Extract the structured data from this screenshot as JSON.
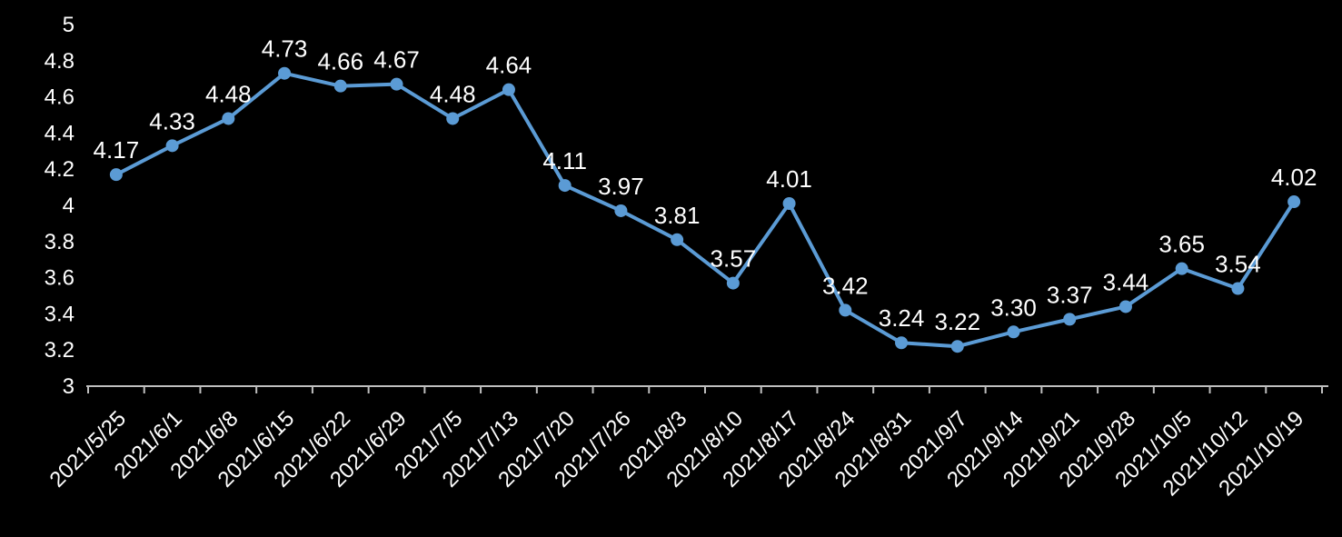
{
  "chart": {
    "background_color": "#000000",
    "line_color": "#5B9BD5",
    "marker_color": "#5B9BD5",
    "data_label_color": "#FFFFFF",
    "axis_label_color": "#FFFFFF",
    "axis_line_color": "#BFBFBF"
  },
  "chart_data": {
    "type": "line",
    "title": "",
    "xlabel": "",
    "ylabel": "",
    "categories": [
      "2021/5/25",
      "2021/6/1",
      "2021/6/8",
      "2021/6/15",
      "2021/6/22",
      "2021/6/29",
      "2021/7/5",
      "2021/7/13",
      "2021/7/20",
      "2021/7/26",
      "2021/8/3",
      "2021/8/10",
      "2021/8/17",
      "2021/8/24",
      "2021/8/31",
      "2021/9/7",
      "2021/9/14",
      "2021/9/21",
      "2021/9/28",
      "2021/10/5",
      "2021/10/12",
      "2021/10/19"
    ],
    "values": [
      4.17,
      4.33,
      4.48,
      4.73,
      4.66,
      4.67,
      4.48,
      4.64,
      4.11,
      3.97,
      3.81,
      3.57,
      4.01,
      3.42,
      3.24,
      3.22,
      3.3,
      3.37,
      3.44,
      3.65,
      3.54,
      4.02
    ],
    "point_labels": [
      "4.17",
      "4.33",
      "4.48",
      "4.73",
      "4.66",
      "4.67",
      "4.48",
      "4.64",
      "4.11",
      "3.97",
      "3.81",
      "3.57",
      "4.01",
      "3.42",
      "3.24",
      "3.22",
      "3.30",
      "3.37",
      "3.44",
      "3.65",
      "3.54",
      "4.02"
    ],
    "ylim": [
      3,
      5
    ],
    "yticks": [
      3,
      3.2,
      3.4,
      3.6,
      3.8,
      4,
      4.2,
      4.4,
      4.6,
      4.8,
      5
    ],
    "ytick_labels": [
      "3",
      "3.2",
      "3.4",
      "3.6",
      "3.8",
      "4",
      "4.2",
      "4.4",
      "4.6",
      "4.8",
      "5"
    ],
    "grid": false,
    "legend": "none",
    "marker": "circle",
    "x_label_rotation": -45
  }
}
